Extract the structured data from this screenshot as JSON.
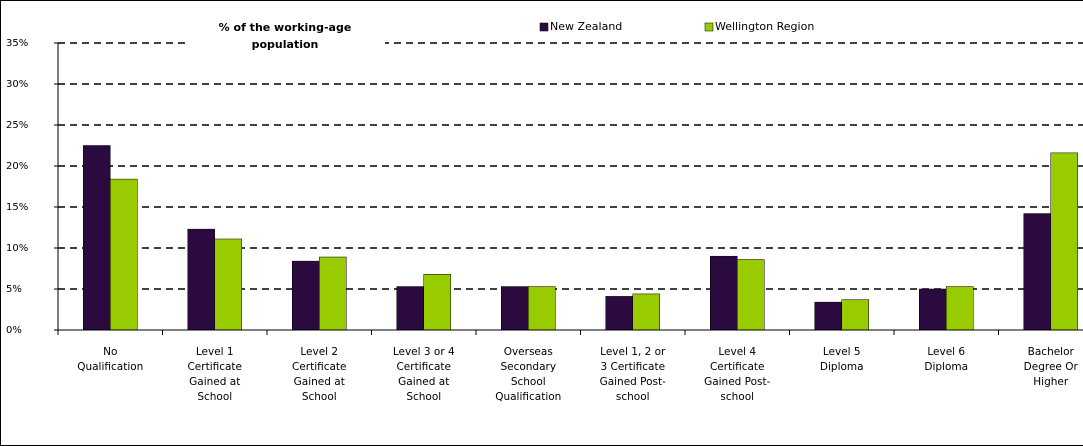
{
  "chart_data": {
    "type": "bar",
    "title": [
      "% of the working-age",
      "population"
    ],
    "categories": [
      [
        "No",
        "Qualification"
      ],
      [
        "Level 1",
        "Certificate",
        "Gained at",
        "School"
      ],
      [
        "Level 2",
        "Certificate",
        "Gained at",
        "School"
      ],
      [
        "Level 3 or 4",
        "Certificate",
        "Gained at",
        "School"
      ],
      [
        "Overseas",
        "Secondary",
        "School",
        "Qualification"
      ],
      [
        "Level 1, 2 or",
        "3 Certificate",
        "Gained Post-",
        "school"
      ],
      [
        "Level 4",
        "Certificate",
        "Gained Post-",
        "school"
      ],
      [
        "Level 5",
        "Diploma"
      ],
      [
        "Level 6",
        "Diploma"
      ],
      [
        "Bachelor",
        "Degree Or",
        "Higher"
      ]
    ],
    "series": [
      {
        "name": "New Zealand",
        "color": "#2a0a3f",
        "values": [
          22.5,
          12.3,
          8.4,
          5.3,
          5.3,
          4.1,
          9.0,
          3.4,
          5.0,
          14.2
        ]
      },
      {
        "name": "Wellington Region",
        "color": "#99cc00",
        "values": [
          18.4,
          11.1,
          8.9,
          6.8,
          5.3,
          4.4,
          8.6,
          3.7,
          5.3,
          21.6
        ]
      }
    ],
    "ylim": [
      0,
      35
    ],
    "yticks": [
      {
        "value": 0,
        "label": "0%"
      },
      {
        "value": 5,
        "label": "5%"
      },
      {
        "value": 10,
        "label": "10%"
      },
      {
        "value": 15,
        "label": "15%"
      },
      {
        "value": 20,
        "label": "20%"
      },
      {
        "value": 25,
        "label": "25%"
      },
      {
        "value": 30,
        "label": "30%"
      },
      {
        "value": 35,
        "label": "35%"
      }
    ],
    "grid": true,
    "legend": "top"
  }
}
